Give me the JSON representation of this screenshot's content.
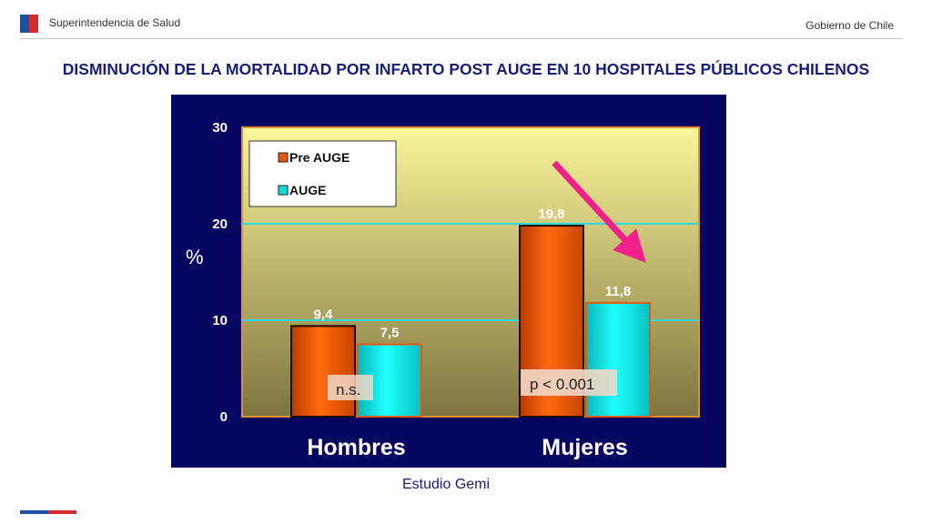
{
  "header": {
    "org": "Superintendencia de Salud",
    "gov": "Gobierno de Chile"
  },
  "title": "DISMINUCIÓN DE LA MORTALIDAD POR INFARTO POST AUGE EN 10 HOSPITALES PÚBLICOS CHILENOS",
  "colors": {
    "pre_auge": "#e25a10",
    "auge": "#10dcdc",
    "plot_bg_top": "#fbf59a",
    "plot_bg_bottom": "#7e7440",
    "frame_bg": "#060660",
    "gridline": "#30d8d8",
    "arrow": "#f0208a"
  },
  "chart_data": {
    "type": "bar",
    "categories": [
      "Hombres",
      "Mujeres"
    ],
    "series": [
      {
        "name": "Pre AUGE",
        "values": [
          9.4,
          19.8
        ],
        "labels": [
          "9,4",
          "19,8"
        ]
      },
      {
        "name": "AUGE",
        "values": [
          7.5,
          11.8
        ],
        "labels": [
          "7,5",
          "11,8"
        ]
      }
    ],
    "ylabel": "%",
    "ylim": [
      0,
      30
    ],
    "yticks": [
      0,
      10,
      20,
      30
    ],
    "grid": true,
    "legend_position": "top-left",
    "annotations": [
      "n.s.",
      "p < 0.001"
    ]
  },
  "source": "Estudio Gemi"
}
